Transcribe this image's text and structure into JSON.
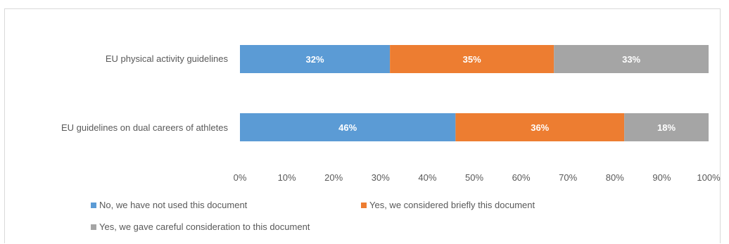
{
  "chart_data": {
    "type": "bar",
    "orientation": "horizontal",
    "stacked": true,
    "categories": [
      "EU physical activity guidelines",
      "EU guidelines on dual careers of athletes"
    ],
    "series": [
      {
        "name": "No, we have not used this document",
        "color": "#5b9bd5",
        "values": [
          32,
          46
        ],
        "labels": [
          "32%",
          "46%"
        ]
      },
      {
        "name": "Yes, we considered briefly this document",
        "color": "#ed7d31",
        "values": [
          35,
          36
        ],
        "labels": [
          "35%",
          "36%"
        ]
      },
      {
        "name": "Yes, we gave careful consideration to this document",
        "color": "#a5a5a5",
        "values": [
          33,
          18
        ],
        "labels": [
          "33%",
          "18%"
        ]
      }
    ],
    "xlim": [
      0,
      100
    ],
    "xticks": [
      "0%",
      "10%",
      "20%",
      "30%",
      "40%",
      "50%",
      "60%",
      "70%",
      "80%",
      "90%",
      "100%"
    ],
    "grid": false,
    "legend_position": "bottom"
  }
}
